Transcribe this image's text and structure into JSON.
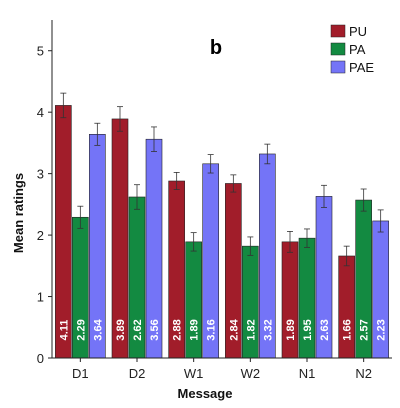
{
  "chart_data": {
    "type": "bar",
    "panel_label": "b",
    "xlabel": "Message",
    "ylabel": "Mean ratings",
    "ylim": [
      0,
      5.5
    ],
    "yticks": [
      0,
      1,
      2,
      3,
      4,
      5
    ],
    "categories": [
      "D1",
      "D2",
      "W1",
      "W2",
      "N1",
      "N2"
    ],
    "series": [
      {
        "name": "PU",
        "color": "#a11d2a",
        "values": [
          4.11,
          3.89,
          2.88,
          2.84,
          1.89,
          1.66
        ],
        "labels": [
          "4.11",
          "3.89",
          "2.88",
          "2.84",
          "1.89",
          "1.66"
        ],
        "err": [
          0.2,
          0.2,
          0.14,
          0.14,
          0.17,
          0.16
        ]
      },
      {
        "name": "PA",
        "color": "#138a41",
        "values": [
          2.29,
          2.62,
          1.89,
          1.82,
          1.95,
          2.57
        ],
        "labels": [
          "2.29",
          "2.62",
          "1.89",
          "1.82",
          "1.95",
          "2.57"
        ],
        "err": [
          0.18,
          0.2,
          0.15,
          0.15,
          0.15,
          0.18
        ]
      },
      {
        "name": "PAE",
        "color": "#7474f7",
        "values": [
          3.64,
          3.56,
          3.16,
          3.32,
          2.63,
          2.23
        ],
        "labels": [
          "3.64",
          "3.56",
          "3.16",
          "3.32",
          "2.63",
          "2.23"
        ],
        "err": [
          0.18,
          0.2,
          0.15,
          0.16,
          0.18,
          0.18
        ]
      }
    ],
    "grid": false,
    "legend": "top-right",
    "bar_labels": "vertical, white, inside bars"
  }
}
